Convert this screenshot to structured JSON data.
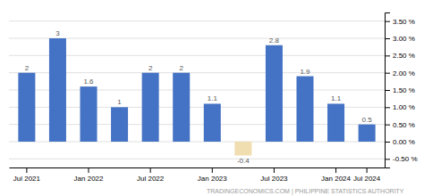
{
  "chart_data": {
    "type": "bar",
    "categories": [
      "Jul 2021",
      null,
      "Jan 2022",
      null,
      "Jul 2022",
      null,
      "Jan 2023",
      null,
      "Jul 2023",
      null,
      "Jan 2024",
      "Jul 2024"
    ],
    "values": [
      2.0,
      3.0,
      1.6,
      1.0,
      2.0,
      2.0,
      1.1,
      -0.4,
      2.8,
      1.9,
      1.1,
      0.5
    ],
    "value_labels": [
      "2",
      "3",
      "1.6",
      "1",
      "2",
      "2",
      "1.1",
      "-0.4",
      "2.8",
      "1.9",
      "1.1",
      "0.5"
    ],
    "colors": [
      "#4472c4",
      "#4472c4",
      "#4472c4",
      "#4472c4",
      "#4472c4",
      "#4472c4",
      "#4472c4",
      "#f0ddb0",
      "#4472c4",
      "#4472c4",
      "#4472c4",
      "#4472c4"
    ],
    "ylim": [
      -0.75,
      3.75
    ],
    "yticks": [
      {
        "value": -0.5,
        "label": "-0.50 %"
      },
      {
        "value": 0.0,
        "label": "0.00 %"
      },
      {
        "value": 0.5,
        "label": "0.50 %"
      },
      {
        "value": 1.0,
        "label": "1.00 %"
      },
      {
        "value": 1.5,
        "label": "1.50 %"
      },
      {
        "value": 2.0,
        "label": "2.00 %"
      },
      {
        "value": 2.5,
        "label": "2.50 %"
      },
      {
        "value": 3.0,
        "label": "3.00 %"
      },
      {
        "value": 3.5,
        "label": "3.50 %"
      }
    ],
    "grid": true,
    "data_labels": true,
    "annotations": [
      "TRADINGECONOMICS.COM  |  PHILIPPINE STATISTICS AUTHORITY"
    ]
  }
}
